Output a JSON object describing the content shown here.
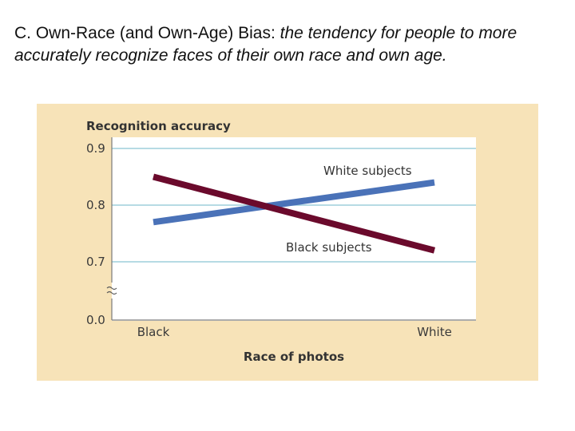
{
  "heading": {
    "term": "C. Own-Race (and Own-Age) Bias:",
    "definition": "the tendency for people to more accurately recognize faces of their own race and own age."
  },
  "colors": {
    "panel_background": "#f7e3b8",
    "plot_background": "#ffffff",
    "gridline": "#9ecfdc",
    "white_subjects": "#4a72b8",
    "black_subjects": "#6b0a2c"
  },
  "chart_data": {
    "type": "line",
    "ylabel": "Recognition accuracy",
    "xlabel": "Race of photos",
    "categories": [
      "Black",
      "White"
    ],
    "y_ticks": [
      "0.9",
      "0.8",
      "0.7",
      "0.0"
    ],
    "ylim": [
      0.0,
      0.9
    ],
    "axis_break": true,
    "grid": true,
    "series": [
      {
        "name": "White subjects",
        "values": [
          0.77,
          0.84
        ]
      },
      {
        "name": "Black subjects",
        "values": [
          0.85,
          0.72
        ]
      }
    ]
  }
}
